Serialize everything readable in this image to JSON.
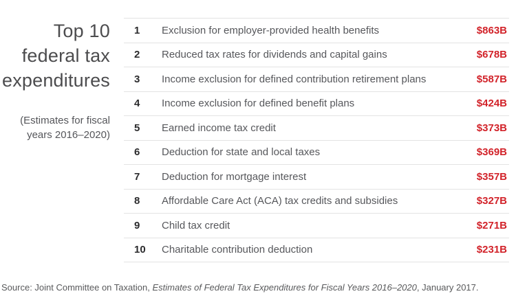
{
  "title": {
    "lines": [
      "Top 10",
      "federal tax",
      "expenditures"
    ],
    "subtitle": "(Estimates for fiscal years 2016–2020)"
  },
  "table": {
    "rows": [
      {
        "rank": "1",
        "label": "Exclusion for employer-provided health benefits",
        "value": "$863B"
      },
      {
        "rank": "2",
        "label": "Reduced tax rates for dividends and capital gains",
        "value": "$678B"
      },
      {
        "rank": "3",
        "label": "Income exclusion for defined contribution retirement plans",
        "value": "$587B"
      },
      {
        "rank": "4",
        "label": "Income exclusion for defined benefit plans",
        "value": "$424B"
      },
      {
        "rank": "5",
        "label": "Earned income tax credit",
        "value": "$373B"
      },
      {
        "rank": "6",
        "label": "Deduction for state and local taxes",
        "value": "$369B"
      },
      {
        "rank": "7",
        "label": "Deduction for mortgage interest",
        "value": "$357B"
      },
      {
        "rank": "8",
        "label": "Affordable Care Act (ACA) tax credits and subsidies",
        "value": "$327B"
      },
      {
        "rank": "9",
        "label": "Child tax credit",
        "value": "$271B"
      },
      {
        "rank": "10",
        "label": "Charitable contribution deduction",
        "value": "$231B"
      }
    ]
  },
  "source": {
    "prefix": "Source: Joint Committee on Taxation, ",
    "italic": "Estimates of Federal Tax Expenditures for Fiscal Years 2016–2020",
    "suffix": ", January 2017."
  },
  "colors": {
    "value_red": "#d2232a",
    "label_gray": "#56575b",
    "rank_dark": "#2b2b2d",
    "title_gray": "#4c4c4e",
    "divider_gray": "#e3e3e3"
  },
  "chart_data": {
    "type": "table",
    "title": "Top 10 federal tax expenditures",
    "subtitle": "(Estimates for fiscal years 2016–2020)",
    "columns": [
      "rank",
      "tax_expenditure",
      "amount_billions_usd"
    ],
    "rows": [
      [
        1,
        "Exclusion for employer-provided health benefits",
        863
      ],
      [
        2,
        "Reduced tax rates for dividends and capital gains",
        678
      ],
      [
        3,
        "Income exclusion for defined contribution retirement plans",
        587
      ],
      [
        4,
        "Income exclusion for defined benefit plans",
        424
      ],
      [
        5,
        "Earned income tax credit",
        373
      ],
      [
        6,
        "Deduction for state and local taxes",
        369
      ],
      [
        7,
        "Deduction for mortgage interest",
        357
      ],
      [
        8,
        "Affordable Care Act (ACA) tax credits and subsidies",
        327
      ],
      [
        9,
        "Child tax credit",
        271
      ],
      [
        10,
        "Charitable contribution deduction",
        231
      ]
    ],
    "value_format": "$<n>B",
    "source": "Source: Joint Committee on Taxation, Estimates of Federal Tax Expenditures for Fiscal Years 2016–2020, January 2017."
  }
}
